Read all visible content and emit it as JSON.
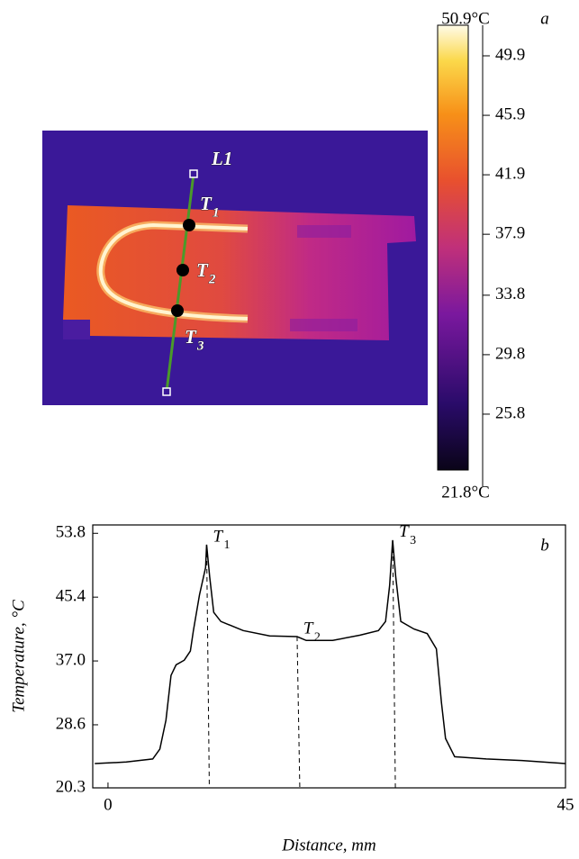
{
  "chart_data": [
    {
      "type": "thermal-image",
      "panel_label": "a",
      "clim": [
        21.8,
        50.9
      ],
      "cticks": [
        {
          "value": 21.8,
          "label": "21.8°C"
        },
        25.8,
        29.8,
        33.8,
        37.9,
        41.9,
        45.9,
        49.9,
        {
          "value": 50.9,
          "label": "50.9°C"
        }
      ],
      "line_label": "L1",
      "points": [
        {
          "label": "T",
          "subscript": "1"
        },
        {
          "label": "T",
          "subscript": "2"
        },
        {
          "label": "T",
          "subscript": "3"
        }
      ]
    },
    {
      "type": "line",
      "panel_label": "b",
      "xlabel": "Distance, mm",
      "ylabel": "Temperature, °C",
      "xlim": [
        -1.5,
        45
      ],
      "ylim": [
        20.3,
        54.9
      ],
      "xticks": [
        0,
        45
      ],
      "yticks": [
        20.3,
        28.6,
        {
          "value": 37,
          "label": "37.0"
        },
        45.4,
        53.8
      ],
      "color": "#000000",
      "x": [
        -1.3,
        1.8,
        4.4,
        5.1,
        5.7,
        6.2,
        6.7,
        7.5,
        8.1,
        8.4,
        9.0,
        9.6,
        9.7,
        10.0,
        10.4,
        11.1,
        13.3,
        15.9,
        18.6,
        19.5,
        22.1,
        24.8,
        26.6,
        27.3,
        27.7,
        28.0,
        28.3,
        28.8,
        30.1,
        31.4,
        32.3,
        32.8,
        33.2,
        34.1,
        37.2,
        40.7,
        45.0
      ],
      "values": [
        23.5,
        23.7,
        24.1,
        25.4,
        29.2,
        35.1,
        36.5,
        37.1,
        38.3,
        41.0,
        45.7,
        49.3,
        52.3,
        48.1,
        43.4,
        42.2,
        41.0,
        40.3,
        40.2,
        39.7,
        39.7,
        40.4,
        41.0,
        42.2,
        46.9,
        52.9,
        48.1,
        42.2,
        41.2,
        40.6,
        38.6,
        31.5,
        26.8,
        24.4,
        24.1,
        23.9,
        23.5
      ],
      "markers": [
        {
          "label": "T",
          "subscript": "1",
          "x": 9.7,
          "y": 52.3
        },
        {
          "label": "T",
          "subscript": "2",
          "x": 18.6,
          "y": 40.2
        },
        {
          "label": "T",
          "subscript": "3",
          "x": 28.0,
          "y": 52.9
        }
      ]
    }
  ]
}
